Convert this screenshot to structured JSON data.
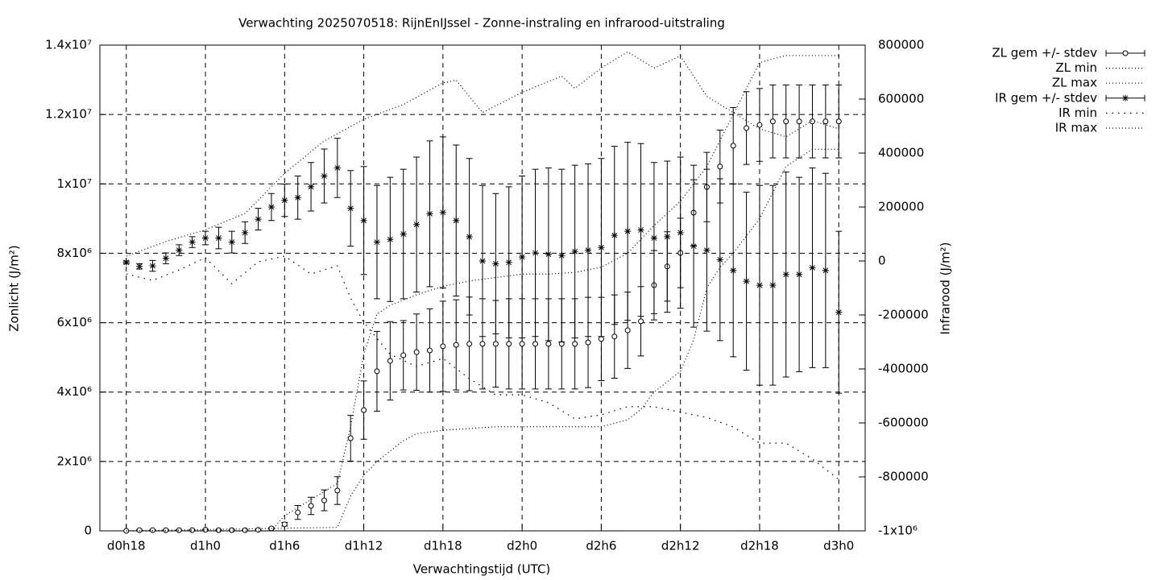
{
  "chart_data": {
    "type": "errorbar",
    "title": "Verwachting 2025070518: RijnEnIJssel - Zonne-instraling en infrarood-uitstraling",
    "x_label": "Verwachtingstijd (UTC)",
    "y_label": "Zonlicht (J/m²)",
    "y2_label": "Infrarood (J/m²)",
    "grid": true,
    "legend": "outside-top-right",
    "xlim": [
      -2,
      56
    ],
    "xticks": [
      {
        "value": 0,
        "label": "d0h18"
      },
      {
        "value": 6,
        "label": "d1h0"
      },
      {
        "value": 12,
        "label": "d1h6"
      },
      {
        "value": 18,
        "label": "d1h12"
      },
      {
        "value": 24,
        "label": "d1h18"
      },
      {
        "value": 30,
        "label": "d2h0"
      },
      {
        "value": 36,
        "label": "d2h6"
      },
      {
        "value": 42,
        "label": "d2h12"
      },
      {
        "value": 48,
        "label": "d2h18"
      },
      {
        "value": 54,
        "label": "d3h0"
      }
    ],
    "ylim": [
      0,
      14000000
    ],
    "yticks": [
      0,
      {
        "value": 2000000,
        "label": "2x10⁶"
      },
      {
        "value": 4000000,
        "label": "4x10⁶"
      },
      {
        "value": 6000000,
        "label": "6x10⁶"
      },
      {
        "value": 8000000,
        "label": "8x10⁶"
      },
      {
        "value": 10000000,
        "label": "1x10⁷"
      },
      {
        "value": 12000000,
        "label": "1.2x10⁷"
      },
      {
        "value": 14000000,
        "label": "1.4x10⁷"
      }
    ],
    "y2lim": [
      -1000000,
      800000
    ],
    "y2ticks": [
      {
        "value": -1000000,
        "label": "-1x10⁶"
      },
      -800000,
      -600000,
      -400000,
      -200000,
      0,
      200000,
      400000,
      600000,
      800000
    ],
    "x": [
      0,
      1,
      2,
      3,
      4,
      5,
      6,
      7,
      8,
      9,
      10,
      11,
      12,
      13,
      14,
      15,
      16,
      17,
      18,
      19,
      20,
      21,
      22,
      23,
      24,
      25,
      26,
      27,
      28,
      29,
      30,
      31,
      32,
      33,
      34,
      35,
      36,
      37,
      38,
      39,
      40,
      41,
      42,
      43,
      44,
      45,
      46,
      47,
      48,
      49,
      50,
      51,
      52,
      53,
      54
    ],
    "series": [
      {
        "name": "ZL gem +/- stdev",
        "style": "errorbar",
        "marker": "circle",
        "color": "#000000",
        "axis": "y",
        "values": [
          0,
          20000,
          20000,
          20000,
          20000,
          20000,
          30000,
          20000,
          20000,
          20000,
          30000,
          70000,
          190000,
          530000,
          720000,
          880000,
          1160000,
          2670000,
          3480000,
          4600000,
          4900000,
          5060000,
          5150000,
          5200000,
          5320000,
          5360000,
          5390000,
          5390000,
          5390000,
          5390000,
          5390000,
          5390000,
          5390000,
          5390000,
          5390000,
          5430000,
          5530000,
          5600000,
          5780000,
          6040000,
          7080000,
          7620000,
          8010000,
          9170000,
          9910000,
          10500000,
          11100000,
          11610000,
          11700000,
          11800000,
          11800000,
          11800000,
          11800000,
          11800000,
          11800000
        ],
        "errors": [
          0,
          10000,
          10000,
          10000,
          10000,
          10000,
          10000,
          10000,
          10000,
          10000,
          10000,
          20000,
          50000,
          200000,
          250000,
          300000,
          400000,
          660000,
          840000,
          1150000,
          1130000,
          1000000,
          1100000,
          1200000,
          1300000,
          1300000,
          1350000,
          1300000,
          1250000,
          1300000,
          1300000,
          1300000,
          1300000,
          1300000,
          1300000,
          1300000,
          1200000,
          1200000,
          1100000,
          1000000,
          1000000,
          1000000,
          1000000,
          950000,
          1000000,
          1050000,
          1100000,
          1050000,
          1050000,
          1050000,
          1050000,
          1050000,
          1050000,
          1050000,
          1050000
        ]
      },
      {
        "name": "ZL min",
        "style": "dotted",
        "color": "#000000",
        "axis": "y",
        "x": [
          0,
          16,
          17,
          18,
          19,
          20,
          21,
          22,
          24,
          26,
          28,
          36,
          37,
          38,
          39,
          40,
          42,
          43,
          44,
          45,
          46,
          48,
          50,
          52,
          54
        ],
        "values": [
          0,
          100000,
          1000000,
          1600000,
          2000000,
          2300000,
          2600000,
          2800000,
          2900000,
          2950000,
          3000000,
          3000000,
          3100000,
          3200000,
          3500000,
          4000000,
          4600000,
          5500000,
          7000000,
          7600000,
          8000000,
          9000000,
          10500000,
          11000000,
          11000000
        ]
      },
      {
        "name": "ZL max",
        "style": "dotted",
        "color": "#000000",
        "axis": "y",
        "x": [
          0,
          11,
          12,
          14,
          16,
          17,
          18,
          19,
          20,
          22,
          24,
          26,
          28,
          30,
          32,
          34,
          36,
          38,
          40,
          42,
          44,
          46,
          48,
          50,
          54
        ],
        "values": [
          0,
          0,
          440000,
          900000,
          1370000,
          3000000,
          5100000,
          6250000,
          6500000,
          6800000,
          7050000,
          7200000,
          7300000,
          7400000,
          7400000,
          7450000,
          7600000,
          8000000,
          8800000,
          9500000,
          10500000,
          12000000,
          13500000,
          13700000,
          13700000
        ]
      },
      {
        "name": "IR gem +/- stdev",
        "style": "errorbar",
        "marker": "star",
        "color": "#000000",
        "axis": "y2",
        "values": [
          -5000,
          -20000,
          -18000,
          10000,
          40000,
          70000,
          85000,
          85000,
          70000,
          105000,
          155000,
          200000,
          225000,
          235000,
          275000,
          315000,
          345000,
          195000,
          150000,
          70000,
          80000,
          100000,
          135000,
          175000,
          180000,
          150000,
          90000,
          0,
          -10000,
          -5000,
          15000,
          30000,
          25000,
          20000,
          35000,
          40000,
          50000,
          95000,
          110000,
          115000,
          85000,
          90000,
          105000,
          55000,
          40000,
          5000,
          -35000,
          -75000,
          -90000,
          -90000,
          -50000,
          -50000,
          -25000,
          -35000,
          -190000
        ],
        "errors": [
          5000,
          10000,
          20000,
          20000,
          20000,
          20000,
          25000,
          40000,
          40000,
          40000,
          40000,
          50000,
          60000,
          80000,
          90000,
          100000,
          110000,
          140000,
          200000,
          210000,
          230000,
          240000,
          250000,
          270000,
          280000,
          280000,
          290000,
          280000,
          260000,
          280000,
          300000,
          310000,
          320000,
          320000,
          320000,
          320000,
          330000,
          330000,
          330000,
          320000,
          280000,
          280000,
          280000,
          300000,
          300000,
          300000,
          320000,
          330000,
          370000,
          370000,
          380000,
          360000,
          370000,
          360000,
          300000
        ]
      },
      {
        "name": "IR min",
        "style": "sparse-dotted",
        "color": "#000000",
        "axis": "y2",
        "x": [
          0,
          2,
          4,
          6,
          8,
          10,
          12,
          14,
          16,
          17,
          18,
          20,
          22,
          24,
          26,
          28,
          30,
          32,
          34,
          36,
          38,
          40,
          42,
          44,
          46,
          48,
          50,
          52,
          54
        ],
        "values": [
          -48000,
          -72000,
          -33000,
          12000,
          -84000,
          -3000,
          18000,
          -48000,
          -18000,
          -137000,
          -227000,
          -346000,
          -391000,
          -361000,
          -436000,
          -496000,
          -496000,
          -525000,
          -585000,
          -570000,
          -540000,
          -540000,
          -560000,
          -580000,
          -615000,
          -675000,
          -675000,
          -734000,
          -809000
        ]
      },
      {
        "name": "IR max",
        "style": "dotted",
        "color": "#000000",
        "axis": "y2",
        "x": [
          0,
          3,
          6,
          9,
          12,
          15,
          18,
          21,
          24,
          25,
          27,
          30,
          33,
          34,
          36,
          38,
          40,
          42,
          44,
          46,
          48,
          50,
          52,
          54
        ],
        "values": [
          18000,
          72000,
          116000,
          176000,
          325000,
          445000,
          525000,
          580000,
          660000,
          670000,
          550000,
          625000,
          685000,
          640000,
          715000,
          775000,
          715000,
          760000,
          610000,
          550000,
          490000,
          460000,
          520000,
          490000
        ]
      }
    ]
  }
}
